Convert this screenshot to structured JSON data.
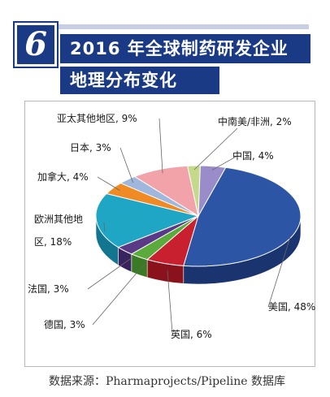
{
  "header": {
    "number": "6",
    "title_line1": "2016 年全球制药研发企业",
    "title_line2": "地理分布变化"
  },
  "chart_data": {
    "type": "pie",
    "title": "2016 年全球制药研发企业地理分布变化",
    "slices": [
      {
        "label_line1": "美国, 48%",
        "label_line2": "",
        "name": "美国",
        "value": 48,
        "color": "#2d55a6",
        "side": "#1a3470"
      },
      {
        "label_line1": "英国, 6%",
        "label_line2": "",
        "name": "英国",
        "value": 6,
        "color": "#c8202e",
        "side": "#8a121c"
      },
      {
        "label_line1": "德国, 3%",
        "label_line2": "",
        "name": "德国",
        "value": 3,
        "color": "#5aab3c",
        "side": "#3b7a25"
      },
      {
        "label_line1": "法国, 3%",
        "label_line2": "",
        "name": "法国",
        "value": 3,
        "color": "#5a3a86",
        "side": "#3a2460"
      },
      {
        "label_line1": "欧洲其他地",
        "label_line2": "区, 18%",
        "name": "欧洲其他地区",
        "value": 18,
        "color": "#1ea6c4",
        "side": "#137690"
      },
      {
        "label_line1": "加拿大, 4%",
        "label_line2": "",
        "name": "加拿大",
        "value": 4,
        "color": "#f08a24",
        "side": "#b0601a"
      },
      {
        "label_line1": "日本, 3%",
        "label_line2": "",
        "name": "日本",
        "value": 3,
        "color": "#9fb7dc",
        "side": "#7089b0"
      },
      {
        "label_line1": "亚太其他地区, 9%",
        "label_line2": "",
        "name": "亚太其他地区",
        "value": 9,
        "color": "#f2a3aa",
        "side": "#c07880"
      },
      {
        "label_line1": "中南美/非洲, 2%",
        "label_line2": "",
        "name": "中南美/非洲",
        "value": 2,
        "color": "#c6d98a",
        "side": "#96a862"
      },
      {
        "label_line1": "中国, 4%",
        "label_line2": "",
        "name": "中国",
        "value": 4,
        "color": "#9a8cc8",
        "side": "#6e6298"
      }
    ]
  },
  "source": {
    "text": "数据来源：Pharmaprojects/Pipeline 数据库"
  }
}
